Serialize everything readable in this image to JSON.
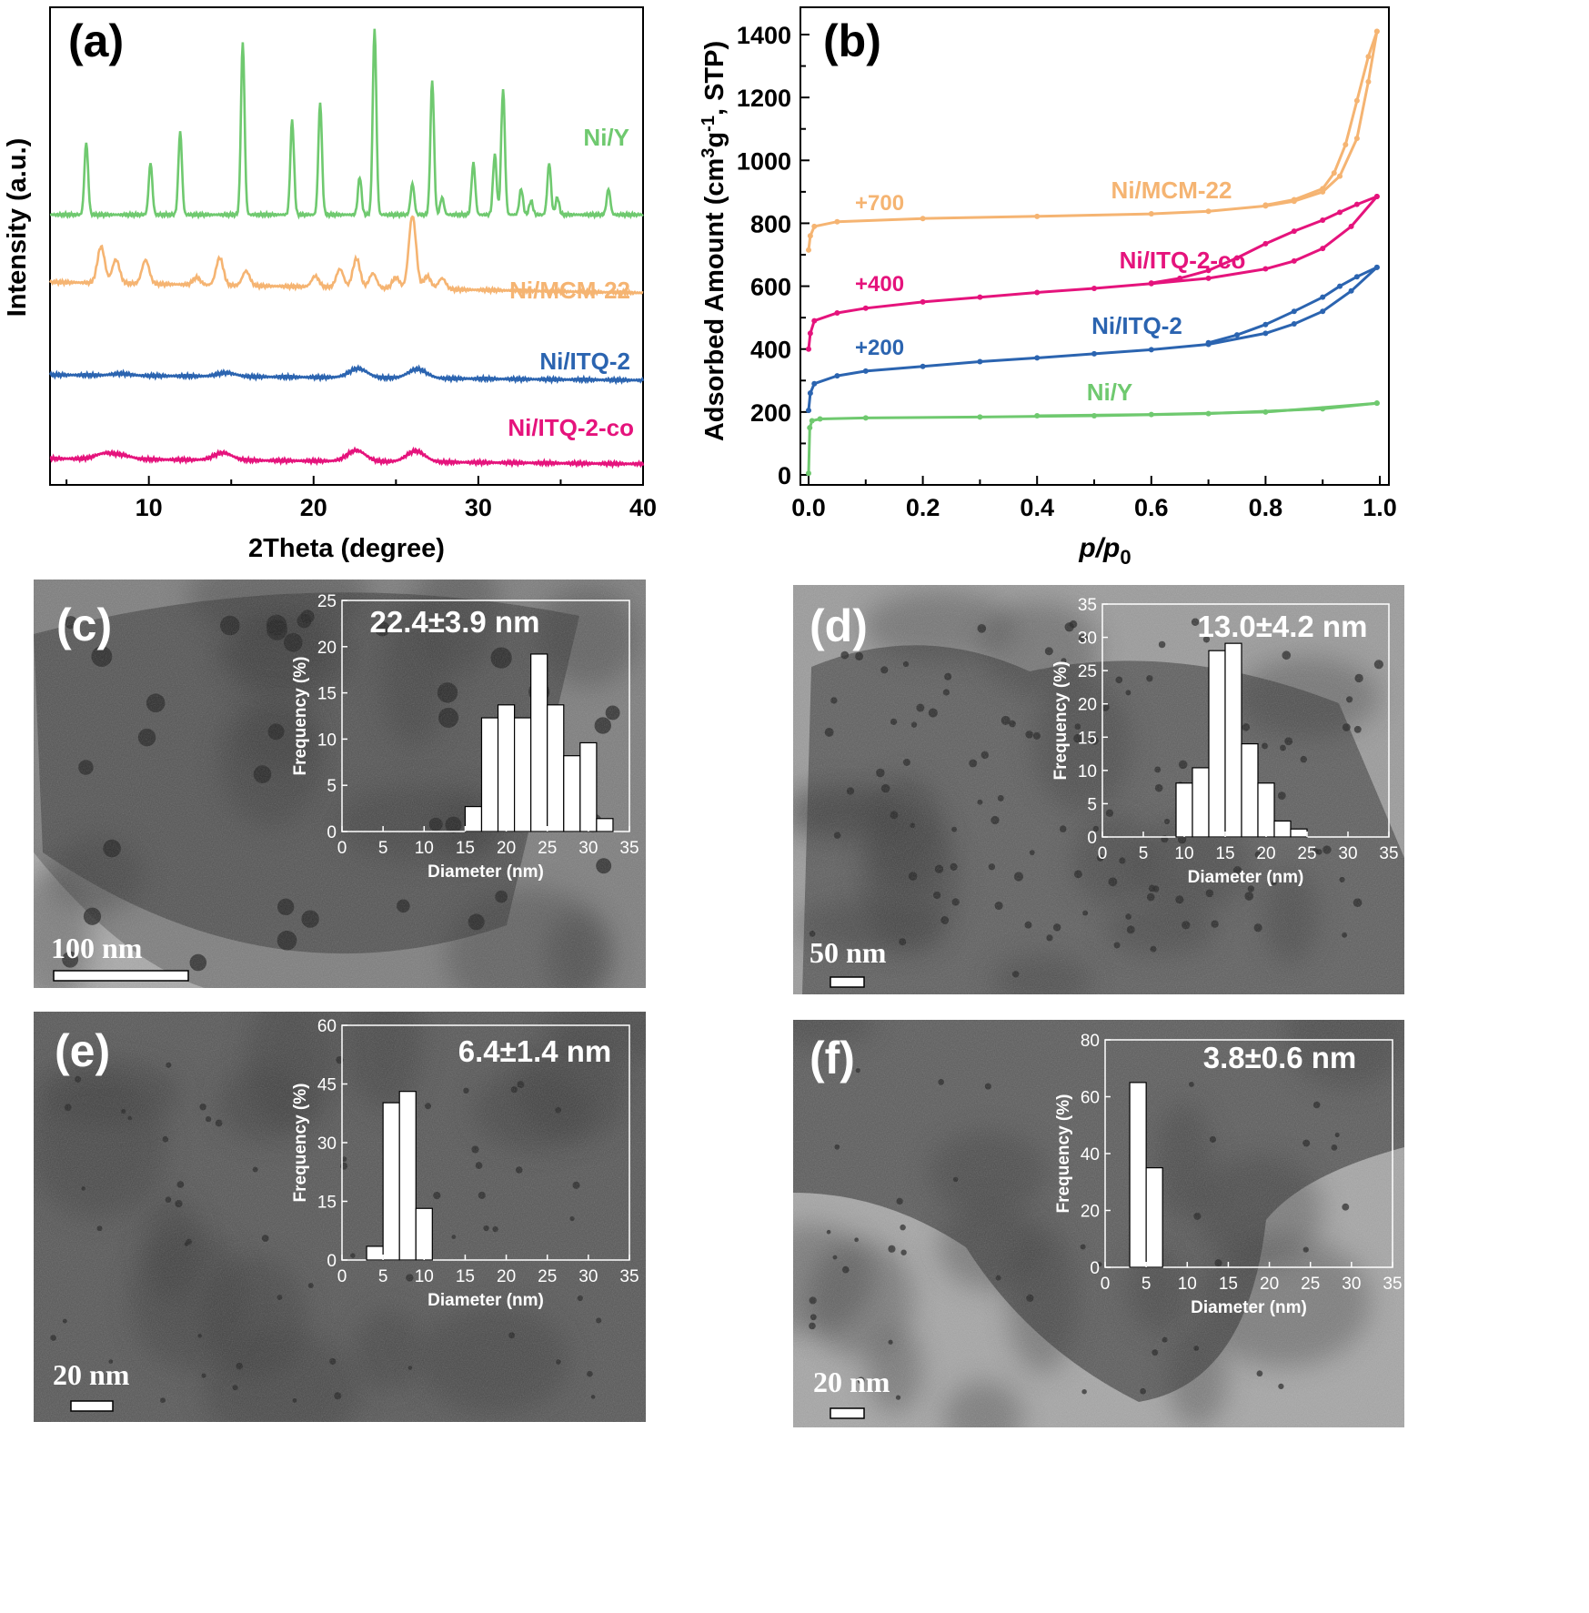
{
  "chart_data": [
    {
      "panel": "(a)",
      "type": "line",
      "xlabel": "2Theta (degree)",
      "ylabel": "Intensity (a.u.)",
      "xlim": [
        4,
        40
      ],
      "xticks": [
        10,
        20,
        30,
        40
      ],
      "y_tick_labels_shown": false,
      "series": [
        {
          "name": "Ni/Y",
          "color": "#6fc96f",
          "baseline": 0.6,
          "peaks": [
            [
              6.2,
              0.42
            ],
            [
              10.1,
              0.3
            ],
            [
              11.9,
              0.48
            ],
            [
              15.7,
              1.0
            ],
            [
              18.7,
              0.55
            ],
            [
              20.4,
              0.65
            ],
            [
              22.8,
              0.22
            ],
            [
              23.7,
              1.08
            ],
            [
              26.0,
              0.18
            ],
            [
              27.2,
              0.78
            ],
            [
              27.8,
              0.1
            ],
            [
              29.7,
              0.3
            ],
            [
              31.0,
              0.35
            ],
            [
              31.5,
              0.73
            ],
            [
              32.6,
              0.15
            ],
            [
              33.2,
              0.08
            ],
            [
              34.3,
              0.3
            ],
            [
              34.8,
              0.1
            ],
            [
              37.9,
              0.15
            ]
          ]
        },
        {
          "name": "Ni/MCM-22",
          "color": "#f5b472",
          "baseline": 0.3,
          "peaks": [
            [
              7.1,
              0.2
            ],
            [
              8.0,
              0.13
            ],
            [
              9.8,
              0.13
            ],
            [
              12.9,
              0.04
            ],
            [
              14.3,
              0.15
            ],
            [
              15.9,
              0.08
            ],
            [
              20.1,
              0.06
            ],
            [
              21.6,
              0.1
            ],
            [
              22.6,
              0.16
            ],
            [
              23.6,
              0.08
            ],
            [
              25.0,
              0.06
            ],
            [
              26.0,
              0.4
            ],
            [
              26.9,
              0.07
            ],
            [
              27.8,
              0.06
            ]
          ]
        },
        {
          "name": "Ni/ITQ-2",
          "color": "#2b64b0",
          "baseline": 0.13,
          "peaks": [
            [
              8.3,
              0.01
            ],
            [
              14.7,
              0.02
            ],
            [
              22.7,
              0.05
            ],
            [
              26.3,
              0.05
            ]
          ]
        },
        {
          "name": "Ni/ITQ-2-co",
          "color": "#e5137c",
          "baseline": 0.02,
          "peaks": [
            [
              7.3,
              0.03
            ],
            [
              8.4,
              0.02
            ],
            [
              14.5,
              0.04
            ],
            [
              22.6,
              0.06
            ],
            [
              26.2,
              0.06
            ]
          ]
        }
      ]
    },
    {
      "panel": "(b)",
      "type": "line",
      "xlabel": "p/p0",
      "ylabel": "Adsorbed Amount (cm3g-1, STP)",
      "xlim": [
        0,
        1
      ],
      "ylim": [
        0,
        1450
      ],
      "xticks": [
        "0.0",
        "0.2",
        "0.4",
        "0.6",
        "0.8",
        "1.0"
      ],
      "yticks": [
        "0",
        "200",
        "400",
        "600",
        "800",
        "1000",
        "1200",
        "1400"
      ],
      "series": [
        {
          "name": "Ni/MCM-22",
          "offset_label": "+700",
          "color": "#f5b472",
          "adsorption": [
            [
              0,
              715
            ],
            [
              0.003,
              760
            ],
            [
              0.01,
              790
            ],
            [
              0.05,
              805
            ],
            [
              0.2,
              815
            ],
            [
              0.4,
              822
            ],
            [
              0.6,
              830
            ],
            [
              0.7,
              838
            ],
            [
              0.8,
              855
            ],
            [
              0.85,
              870
            ],
            [
              0.9,
              900
            ],
            [
              0.93,
              950
            ],
            [
              0.96,
              1070
            ],
            [
              0.98,
              1250
            ],
            [
              0.995,
              1410
            ]
          ],
          "desorption": [
            [
              0.995,
              1410
            ],
            [
              0.98,
              1330
            ],
            [
              0.96,
              1190
            ],
            [
              0.94,
              1050
            ],
            [
              0.92,
              960
            ],
            [
              0.9,
              910
            ],
            [
              0.85,
              875
            ],
            [
              0.8,
              858
            ]
          ]
        },
        {
          "name": "Ni/ITQ-2-co",
          "offset_label": "+400",
          "color": "#e5137c",
          "adsorption": [
            [
              0,
              400
            ],
            [
              0.003,
              450
            ],
            [
              0.01,
              490
            ],
            [
              0.05,
              515
            ],
            [
              0.1,
              530
            ],
            [
              0.2,
              550
            ],
            [
              0.3,
              565
            ],
            [
              0.4,
              580
            ],
            [
              0.5,
              593
            ],
            [
              0.6,
              608
            ],
            [
              0.7,
              625
            ],
            [
              0.8,
              655
            ],
            [
              0.85,
              680
            ],
            [
              0.9,
              720
            ],
            [
              0.95,
              790
            ],
            [
              0.995,
              885
            ]
          ],
          "desorption": [
            [
              0.995,
              885
            ],
            [
              0.96,
              860
            ],
            [
              0.93,
              835
            ],
            [
              0.9,
              810
            ],
            [
              0.85,
              775
            ],
            [
              0.8,
              735
            ],
            [
              0.75,
              690
            ],
            [
              0.7,
              650
            ],
            [
              0.65,
              625
            ],
            [
              0.6,
              610
            ]
          ]
        },
        {
          "name": "Ni/ITQ-2",
          "offset_label": "+200",
          "color": "#2b64b0",
          "adsorption": [
            [
              0,
              205
            ],
            [
              0.003,
              260
            ],
            [
              0.01,
              290
            ],
            [
              0.05,
              315
            ],
            [
              0.1,
              330
            ],
            [
              0.2,
              345
            ],
            [
              0.3,
              360
            ],
            [
              0.4,
              372
            ],
            [
              0.5,
              385
            ],
            [
              0.6,
              398
            ],
            [
              0.7,
              415
            ],
            [
              0.8,
              450
            ],
            [
              0.85,
              480
            ],
            [
              0.9,
              520
            ],
            [
              0.95,
              585
            ],
            [
              0.995,
              660
            ]
          ],
          "desorption": [
            [
              0.995,
              660
            ],
            [
              0.96,
              630
            ],
            [
              0.93,
              600
            ],
            [
              0.9,
              565
            ],
            [
              0.85,
              520
            ],
            [
              0.8,
              478
            ],
            [
              0.75,
              445
            ],
            [
              0.7,
              420
            ]
          ]
        },
        {
          "name": "Ni/Y",
          "offset_label": "",
          "color": "#6fc96f",
          "adsorption": [
            [
              0,
              5
            ],
            [
              0.002,
              150
            ],
            [
              0.006,
              172
            ],
            [
              0.02,
              178
            ],
            [
              0.1,
              181
            ],
            [
              0.3,
              184
            ],
            [
              0.5,
              188
            ],
            [
              0.7,
              195
            ],
            [
              0.9,
              210
            ],
            [
              0.995,
              228
            ]
          ],
          "desorption": [
            [
              0.995,
              228
            ],
            [
              0.8,
              200
            ],
            [
              0.6,
              192
            ],
            [
              0.4,
              188
            ]
          ]
        }
      ]
    },
    {
      "panel": "(c)",
      "type": "bar",
      "size_label": "22.4±3.9 nm",
      "scale_bar": "100 nm",
      "xlabel": "Diameter (nm)",
      "ylabel": "Frequency (%)",
      "xlim": [
        0,
        35
      ],
      "ylim": [
        0,
        25
      ],
      "xticks": [
        "0",
        "5",
        "10",
        "15",
        "20",
        "25",
        "30",
        "35"
      ],
      "yticks": [
        "0",
        "5",
        "10",
        "15",
        "20",
        "25"
      ],
      "bin_width": 2,
      "bins": [
        [
          15,
          2.7
        ],
        [
          17,
          12.3
        ],
        [
          19,
          13.7
        ],
        [
          21,
          12.3
        ],
        [
          23,
          19.2
        ],
        [
          25,
          13.7
        ],
        [
          27,
          8.2
        ],
        [
          29,
          9.6
        ],
        [
          31,
          1.4
        ]
      ]
    },
    {
      "panel": "(d)",
      "type": "bar",
      "size_label": "13.0±4.2 nm",
      "scale_bar": "50 nm",
      "xlabel": "Diameter (nm)",
      "ylabel": "Frequency (%)",
      "xlim": [
        0,
        35
      ],
      "ylim": [
        0,
        35
      ],
      "xticks": [
        "0",
        "5",
        "10",
        "15",
        "20",
        "25",
        "30",
        "35"
      ],
      "yticks": [
        "0",
        "5",
        "10",
        "15",
        "20",
        "25",
        "30",
        "35"
      ],
      "bin_width": 2,
      "bins": [
        [
          9,
          8.1
        ],
        [
          11,
          10.4
        ],
        [
          13,
          28.0
        ],
        [
          15,
          29.1
        ],
        [
          17,
          14.0
        ],
        [
          19,
          8.1
        ],
        [
          21,
          2.4
        ],
        [
          23,
          1.2
        ]
      ]
    },
    {
      "panel": "(e)",
      "type": "bar",
      "size_label": "6.4±1.4 nm",
      "scale_bar": "20 nm",
      "xlabel": "Diameter (nm)",
      "ylabel": "Frequency (%)",
      "xlim": [
        0,
        35
      ],
      "ylim": [
        0,
        60
      ],
      "xticks": [
        "0",
        "5",
        "10",
        "15",
        "20",
        "25",
        "30",
        "35"
      ],
      "yticks": [
        "0",
        "15",
        "30",
        "45",
        "60"
      ],
      "bin_width": 2,
      "bins": [
        [
          3,
          3.5
        ],
        [
          5,
          40.2
        ],
        [
          7,
          43.1
        ],
        [
          9,
          13.2
        ]
      ]
    },
    {
      "panel": "(f)",
      "type": "bar",
      "size_label": "3.8±0.6 nm",
      "scale_bar": "20 nm",
      "xlabel": "Diameter (nm)",
      "ylabel": "Frequency (%)",
      "xlim": [
        0,
        35
      ],
      "ylim": [
        0,
        80
      ],
      "xticks": [
        "0",
        "5",
        "10",
        "15",
        "20",
        "25",
        "30",
        "35"
      ],
      "yticks": [
        "0",
        "20",
        "40",
        "60",
        "80"
      ],
      "bin_width": 2,
      "bins": [
        [
          3,
          65.0
        ],
        [
          5,
          35.0
        ]
      ]
    }
  ]
}
